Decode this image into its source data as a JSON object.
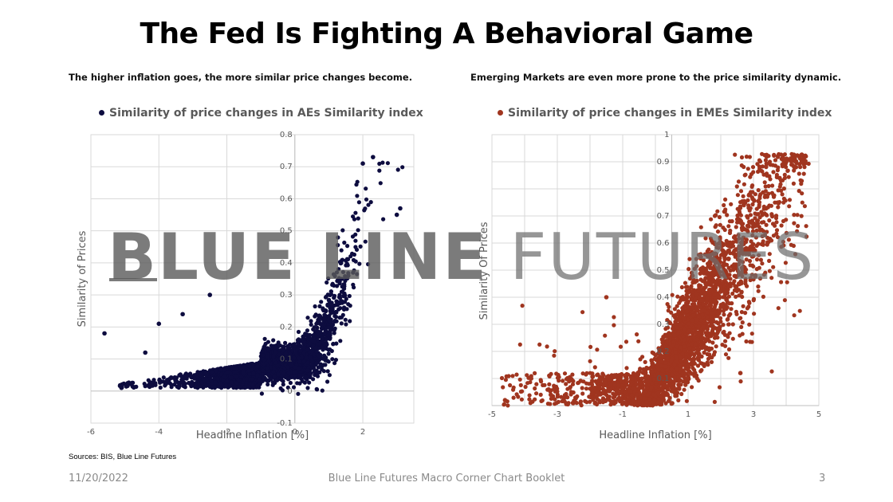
{
  "page": {
    "title": "The Fed Is Fighting A Behavioral Game",
    "subtitle_left": "The higher inflation goes, the more similar price changes become.",
    "subtitle_right": "Emerging Markets are even more prone to the price similarity dynamic.",
    "sources": "Sources: BIS, Blue Line Futures",
    "footer_date": "11/20/2022",
    "footer_center": "Blue Line Futures Macro Corner Chart Booklet",
    "footer_page": "3",
    "watermark_bold": "BLUE LINE",
    "watermark_light": " FUTURES"
  },
  "colors": {
    "ae_series": "#0d0c3f",
    "eme_series": "#a0351f",
    "grid": "#d9d9d9",
    "axis": "#bfbfbf",
    "text_gray": "#595959"
  },
  "chart_data": [
    {
      "type": "scatter",
      "title": "Similarity of price changes in AEs Similarity index",
      "series_name": "Similarity of price changes in AEs Similarity index",
      "xlabel": "Headline Inflation [%]",
      "ylabel": "Similarity of Prices",
      "xlim": [
        -6,
        3.5
      ],
      "ylim": [
        -0.1,
        0.8
      ],
      "x_ticks": [
        -6,
        -4,
        -2,
        0,
        2
      ],
      "y_tick_labels": [
        "-0.1",
        "0",
        "0.1",
        "0.2",
        "0.3",
        "0.4",
        "0.5",
        "0.6",
        "0.7",
        "0.8"
      ],
      "y_ticks": [
        -0.1,
        0,
        0.1,
        0.2,
        0.3,
        0.4,
        0.5,
        0.6,
        0.7,
        0.8
      ],
      "vertical_gridlines": [
        -4,
        -2,
        0,
        2
      ],
      "horizontal_gridlines": [
        0.1,
        0.2,
        0.3,
        0.4,
        0.5,
        0.6,
        0.7,
        0.8
      ],
      "legend_position": "top",
      "description": "Dense cloud: low similarity (0–0.1) for inflation below 0, rising steeply above 1% inflation to ~0.7 near 2–2.3%.",
      "notable_points": [
        {
          "x": -5.6,
          "y": 0.18
        },
        {
          "x": -5.1,
          "y": 0.01
        },
        {
          "x": -3.3,
          "y": 0.24
        },
        {
          "x": -2.5,
          "y": 0.3
        },
        {
          "x": -4.0,
          "y": 0.21
        },
        {
          "x": -4.4,
          "y": 0.12
        },
        {
          "x": 2.0,
          "y": 0.71
        },
        {
          "x": 2.3,
          "y": 0.73
        },
        {
          "x": 3.1,
          "y": 0.57
        },
        {
          "x": 3.0,
          "y": 0.55
        }
      ],
      "cloud_samples": 2600
    },
    {
      "type": "scatter",
      "title": "Similarity of price changes in EMEs Similarity index",
      "series_name": "Similarity of price changes in EMEs Similarity index",
      "xlabel": "Headline Inflation [%]",
      "ylabel": "Similarity Of Prices",
      "xlim": [
        -5,
        5
      ],
      "ylim": [
        0,
        1
      ],
      "x_ticks": [
        -5,
        -3,
        -1,
        1,
        3,
        5
      ],
      "y_ticks": [
        0.1,
        0.2,
        0.3,
        0.4,
        0.5,
        0.6,
        0.7,
        0.8,
        0.9,
        1
      ],
      "y_tick_labels": [
        "0.1",
        "0.2",
        "0.3",
        "0.4",
        "0.5",
        "0.6",
        "0.7",
        "0.8",
        "0.9",
        "1"
      ],
      "vertical_gridlines": [
        -4,
        -3,
        -2,
        -1,
        0,
        1,
        2,
        3,
        4
      ],
      "horizontal_gridlines": [
        0.1,
        0.2,
        0.3,
        0.4,
        0.5,
        0.6,
        0.7,
        0.8,
        0.9,
        1
      ],
      "legend_position": "top",
      "description": "Low similarity (0–0.1) for negative inflation, increasing roughly linearly with inflation to ~0.9 at 4.5%.",
      "notable_points": [
        {
          "x": -4.6,
          "y": 0.02
        },
        {
          "x": -3.8,
          "y": 0.1
        },
        {
          "x": -3.2,
          "y": 0.04
        },
        {
          "x": -1.5,
          "y": 0.4
        },
        {
          "x": 4.6,
          "y": 0.92
        },
        {
          "x": 4.3,
          "y": 0.88
        },
        {
          "x": 2.6,
          "y": 0.12
        },
        {
          "x": 3.8,
          "y": 0.84
        }
      ],
      "cloud_samples": 3000
    }
  ]
}
